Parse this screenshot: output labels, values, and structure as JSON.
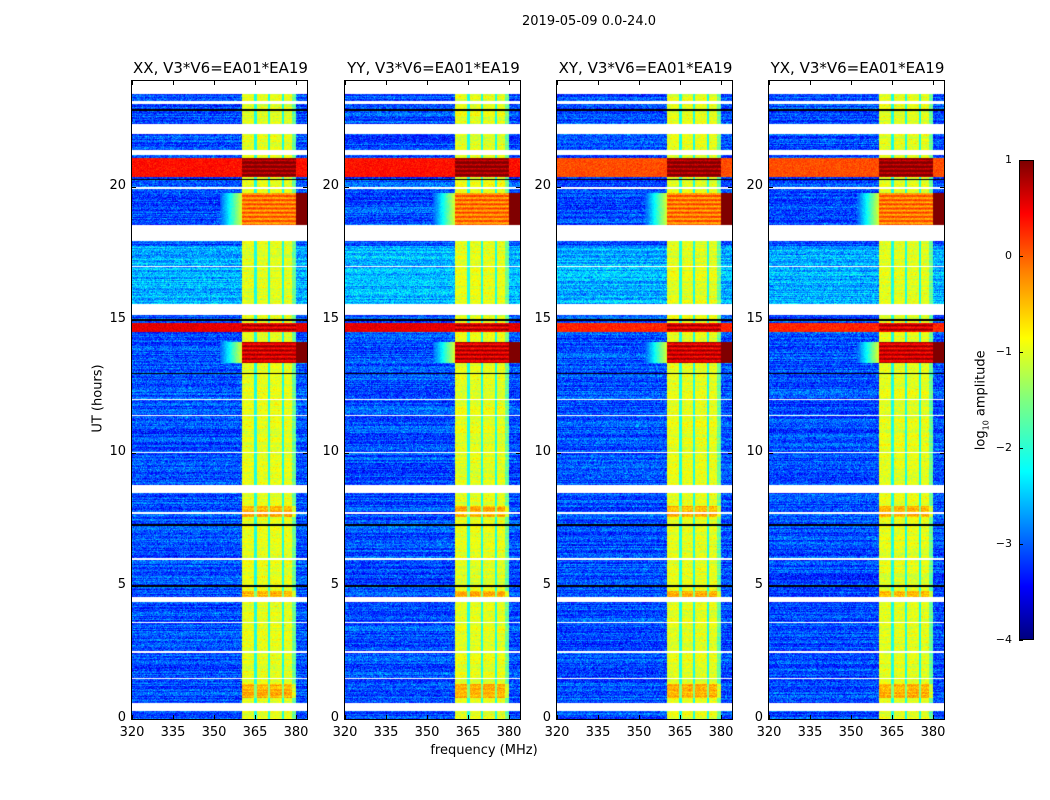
{
  "chart_data": {
    "type": "heatmap",
    "title": "2019-05-09 0.0-24.0",
    "xlabel": "frequency (MHz)",
    "ylabel": "UT (hours)",
    "xlim": [
      320,
      384
    ],
    "ylim": [
      0,
      24
    ],
    "xticks": [
      "320",
      "335",
      "350",
      "365",
      "380"
    ],
    "xtick_values": [
      320,
      335,
      350,
      365,
      380
    ],
    "yticks": [
      "0",
      "5",
      "10",
      "15",
      "20"
    ],
    "ytick_values": [
      0,
      5,
      10,
      15,
      20
    ],
    "panels": [
      {
        "title": "XX, V3*V6=EA01*EA19",
        "cross": false
      },
      {
        "title": "YY, V3*V6=EA01*EA19",
        "cross": false
      },
      {
        "title": "XY, V3*V6=EA01*EA19",
        "cross": true
      },
      {
        "title": "YX, V3*V6=EA01*EA19",
        "cross": true
      }
    ],
    "colorbar": {
      "label_main": "log",
      "label_sub": "10",
      "label_rest": " amplitude",
      "colormap": "jet",
      "clim": [
        -4,
        1
      ],
      "ticks": [
        "1",
        "0",
        "−1",
        "−2",
        "−3",
        "−4"
      ],
      "tick_values": [
        1,
        0,
        -1,
        -2,
        -3,
        -4
      ]
    },
    "background_level": -3.0,
    "rfi_band_mhz": [
      360.4,
      380.0
    ],
    "rfi_band_level": -1.0,
    "rfi_subband_gaps_mhz": [
      365.1,
      370.2,
      375.2
    ],
    "flagged_hours": [
      [
        23.5,
        24
      ],
      [
        23.15,
        23.25
      ],
      [
        22.0,
        22.4
      ],
      [
        21.2,
        21.4
      ],
      [
        19.95,
        20.0
      ],
      [
        18.0,
        18.6
      ],
      [
        17.0,
        17.05
      ],
      [
        15.2,
        15.6
      ],
      [
        12.0,
        12.05
      ],
      [
        11.4,
        11.45
      ],
      [
        10.0,
        10.05
      ],
      [
        8.5,
        8.8
      ],
      [
        7.7,
        7.8
      ],
      [
        6.0,
        6.05
      ],
      [
        4.4,
        4.6
      ],
      [
        3.6,
        3.65
      ],
      [
        2.5,
        2.55
      ],
      [
        1.5,
        1.55
      ],
      [
        0.3,
        0.6
      ]
    ],
    "zero_rows_hours": [
      0.45,
      5.0,
      7.3,
      13.0,
      15.0,
      18.2,
      20.3,
      22.9
    ],
    "bright_events": [
      {
        "hours": [
          20.4,
          21.1
        ],
        "in_band": 0.9,
        "out_band": 0.3
      },
      {
        "hours": [
          14.55,
          14.9
        ],
        "in_band": 0.6,
        "out_band": 0.5
      },
      {
        "hours": [
          13.4,
          14.2
        ],
        "in_band": 0.6,
        "out_band": -2.7
      },
      {
        "hours": [
          18.6,
          19.8
        ],
        "in_band": -0.2,
        "out_band": -3.0
      }
    ]
  }
}
